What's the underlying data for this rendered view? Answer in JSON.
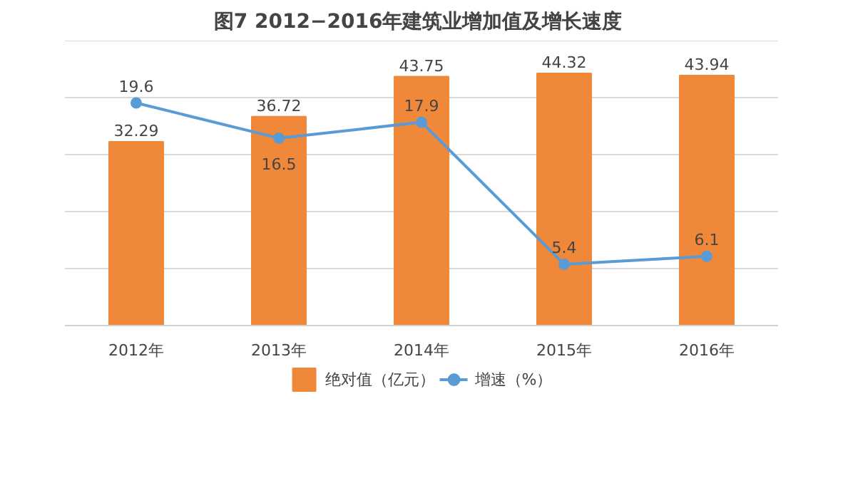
{
  "chart_data": {
    "type": "bar",
    "title": "图7  2012−2016年建筑业增加值及增长速度",
    "categories": [
      "2012年",
      "2013年",
      "2014年",
      "2015年",
      "2016年"
    ],
    "series": [
      {
        "name": "绝对值（亿元）",
        "color": "#f0883a",
        "values": [
          32.29,
          36.72,
          43.75,
          44.32,
          43.94
        ]
      },
      {
        "name": "增速（%）",
        "type": "line",
        "axis": "y2",
        "color": "#5b9bd5",
        "values": [
          19.6,
          16.5,
          17.9,
          5.4,
          6.1
        ]
      }
    ],
    "tick_labels": "x",
    "grid": "y",
    "legend": "bottom",
    "marker": "circle",
    "line_style": "solid",
    "data_labels": true
  }
}
